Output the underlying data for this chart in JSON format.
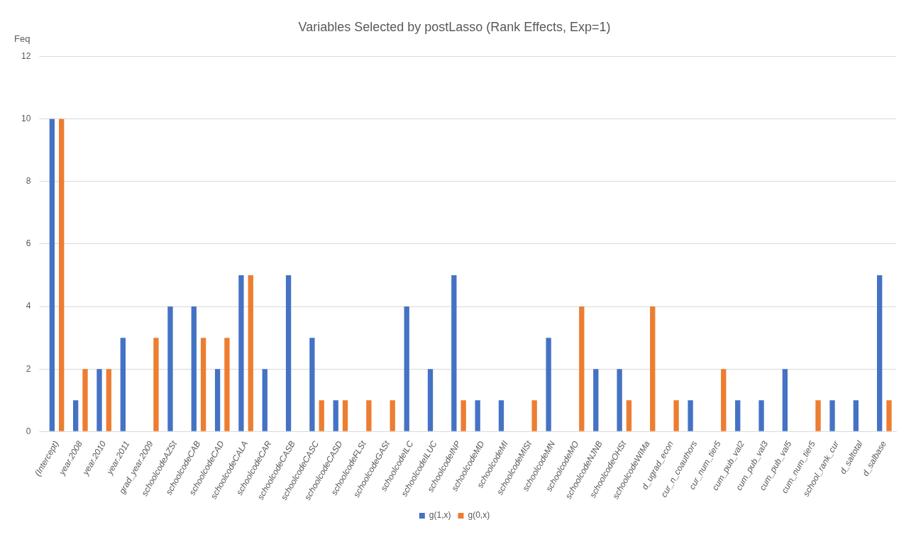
{
  "chart_data": {
    "type": "bar",
    "title": "Variables Selected by postLasso (Rank Effects, Exp=1)",
    "ylabel": "Feq",
    "categories": [
      "(Intercept)",
      "year.2008",
      "year.2010",
      "year.2011",
      "grad_year.2009",
      "schoolcodeAZSt",
      "schoolcodeCAB",
      "schoolcodeCAD",
      "schoolcodeCALA",
      "schoolcodeCAR",
      "schoolcodeCASB",
      "schoolcodeCASC",
      "schoolcodeCASD",
      "schoolcodeFLSt",
      "schoolcodeGASt",
      "schoolcodeILC",
      "schoolcodeILUC",
      "schoolcodeINP",
      "schoolcodeMD",
      "schoolcodeMI",
      "schoolcodeMISt",
      "schoolcodeMN",
      "schoolcodeMO",
      "schoolcodeNJNB",
      "schoolcodeOHSt",
      "schoolcodeWIMa",
      "d_ugrad_econ",
      "cur_n_coauthors",
      "cur_num_tier5",
      "cum_pub_val2",
      "cum_pub_val3",
      "cum_pub_val5",
      "cum_num_tier5",
      "school_rank_cur",
      "d_saltotal",
      "d_salbase"
    ],
    "series": [
      {
        "name": "g(1,x)",
        "color": "#4472c4",
        "values": [
          10,
          1,
          2,
          3,
          0,
          4,
          4,
          2,
          5,
          2,
          5,
          3,
          1,
          0,
          0,
          4,
          2,
          5,
          1,
          1,
          0,
          3,
          0,
          2,
          2,
          0,
          0,
          1,
          0,
          1,
          1,
          2,
          0,
          1,
          1,
          5
        ]
      },
      {
        "name": "g(0,x)",
        "color": "#ed7d31",
        "values": [
          10,
          2,
          2,
          0,
          3,
          0,
          3,
          3,
          5,
          0,
          0,
          1,
          1,
          1,
          1,
          0,
          0,
          1,
          0,
          0,
          1,
          0,
          4,
          0,
          1,
          4,
          1,
          0,
          2,
          0,
          0,
          0,
          1,
          0,
          0,
          1
        ]
      }
    ],
    "ylim": [
      0,
      12
    ],
    "yticks": [
      0,
      2,
      4,
      6,
      8,
      10,
      12
    ],
    "grid": "y",
    "legend": "bottom"
  }
}
